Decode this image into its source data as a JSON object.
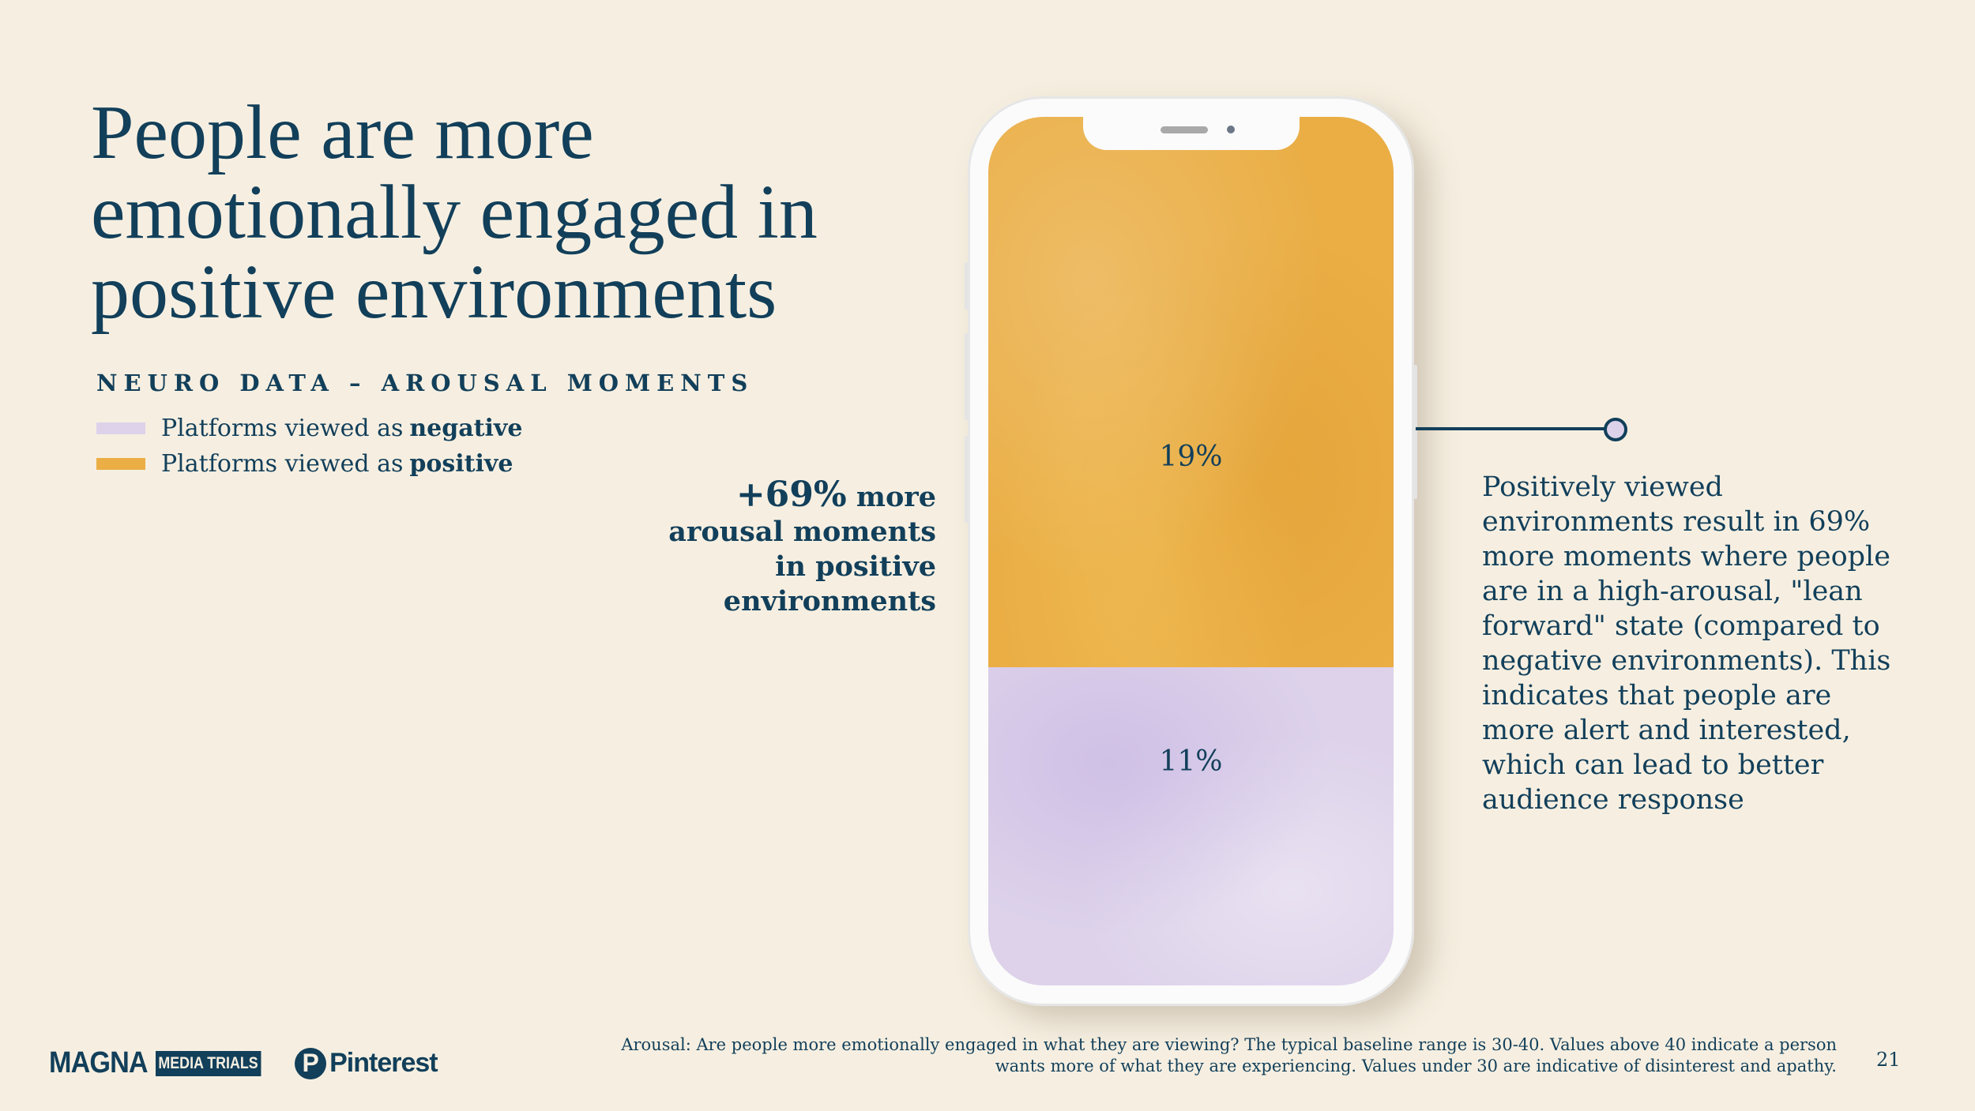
{
  "title": "People are more emotionally engaged in positive environments",
  "subtitle": "NEURO DATA – AROUSAL MOMENTS",
  "colors": {
    "negative": "#ddd2ea",
    "positive": "#eaae45",
    "text": "#123f5a",
    "background": "#f6efe1"
  },
  "legend": [
    {
      "prefix": "Platforms viewed as",
      "bold": "negative",
      "color": "#ddd2ea"
    },
    {
      "prefix": "Platforms viewed as",
      "bold": "positive",
      "color": "#eaae45"
    }
  ],
  "left_callout": {
    "big": "+69%",
    "rest": "more",
    "line2": "arousal moments",
    "line3": "in positive",
    "line4": "environments"
  },
  "chart_data": {
    "type": "bar",
    "stacked": true,
    "categories": [
      "Platforms viewed as negative",
      "Platforms viewed as positive"
    ],
    "values": [
      11,
      19
    ],
    "labels": [
      "11%",
      "19%"
    ],
    "unit": "%",
    "title": "NEURO DATA – AROUSAL MOMENTS"
  },
  "right_text": "Positively viewed environments result in 69% more moments where people are in a high-arousal, \"lean forward\" state (compared to negative environments). This indicates that people are more alert and interested, which can lead to better audience response",
  "footnote": "Arousal: Are people more emotionally engaged in what they are viewing? The typical baseline range is 30-40. Values above 40 indicate a person wants more of what they are experiencing.  Values under 30 are indicative of disinterest and apathy.",
  "page_number": "21",
  "logos": {
    "magna": "MAGNA",
    "media_trials": "MEDIA TRIALS",
    "pinterest": "Pinterest",
    "pin_glyph": "P"
  }
}
